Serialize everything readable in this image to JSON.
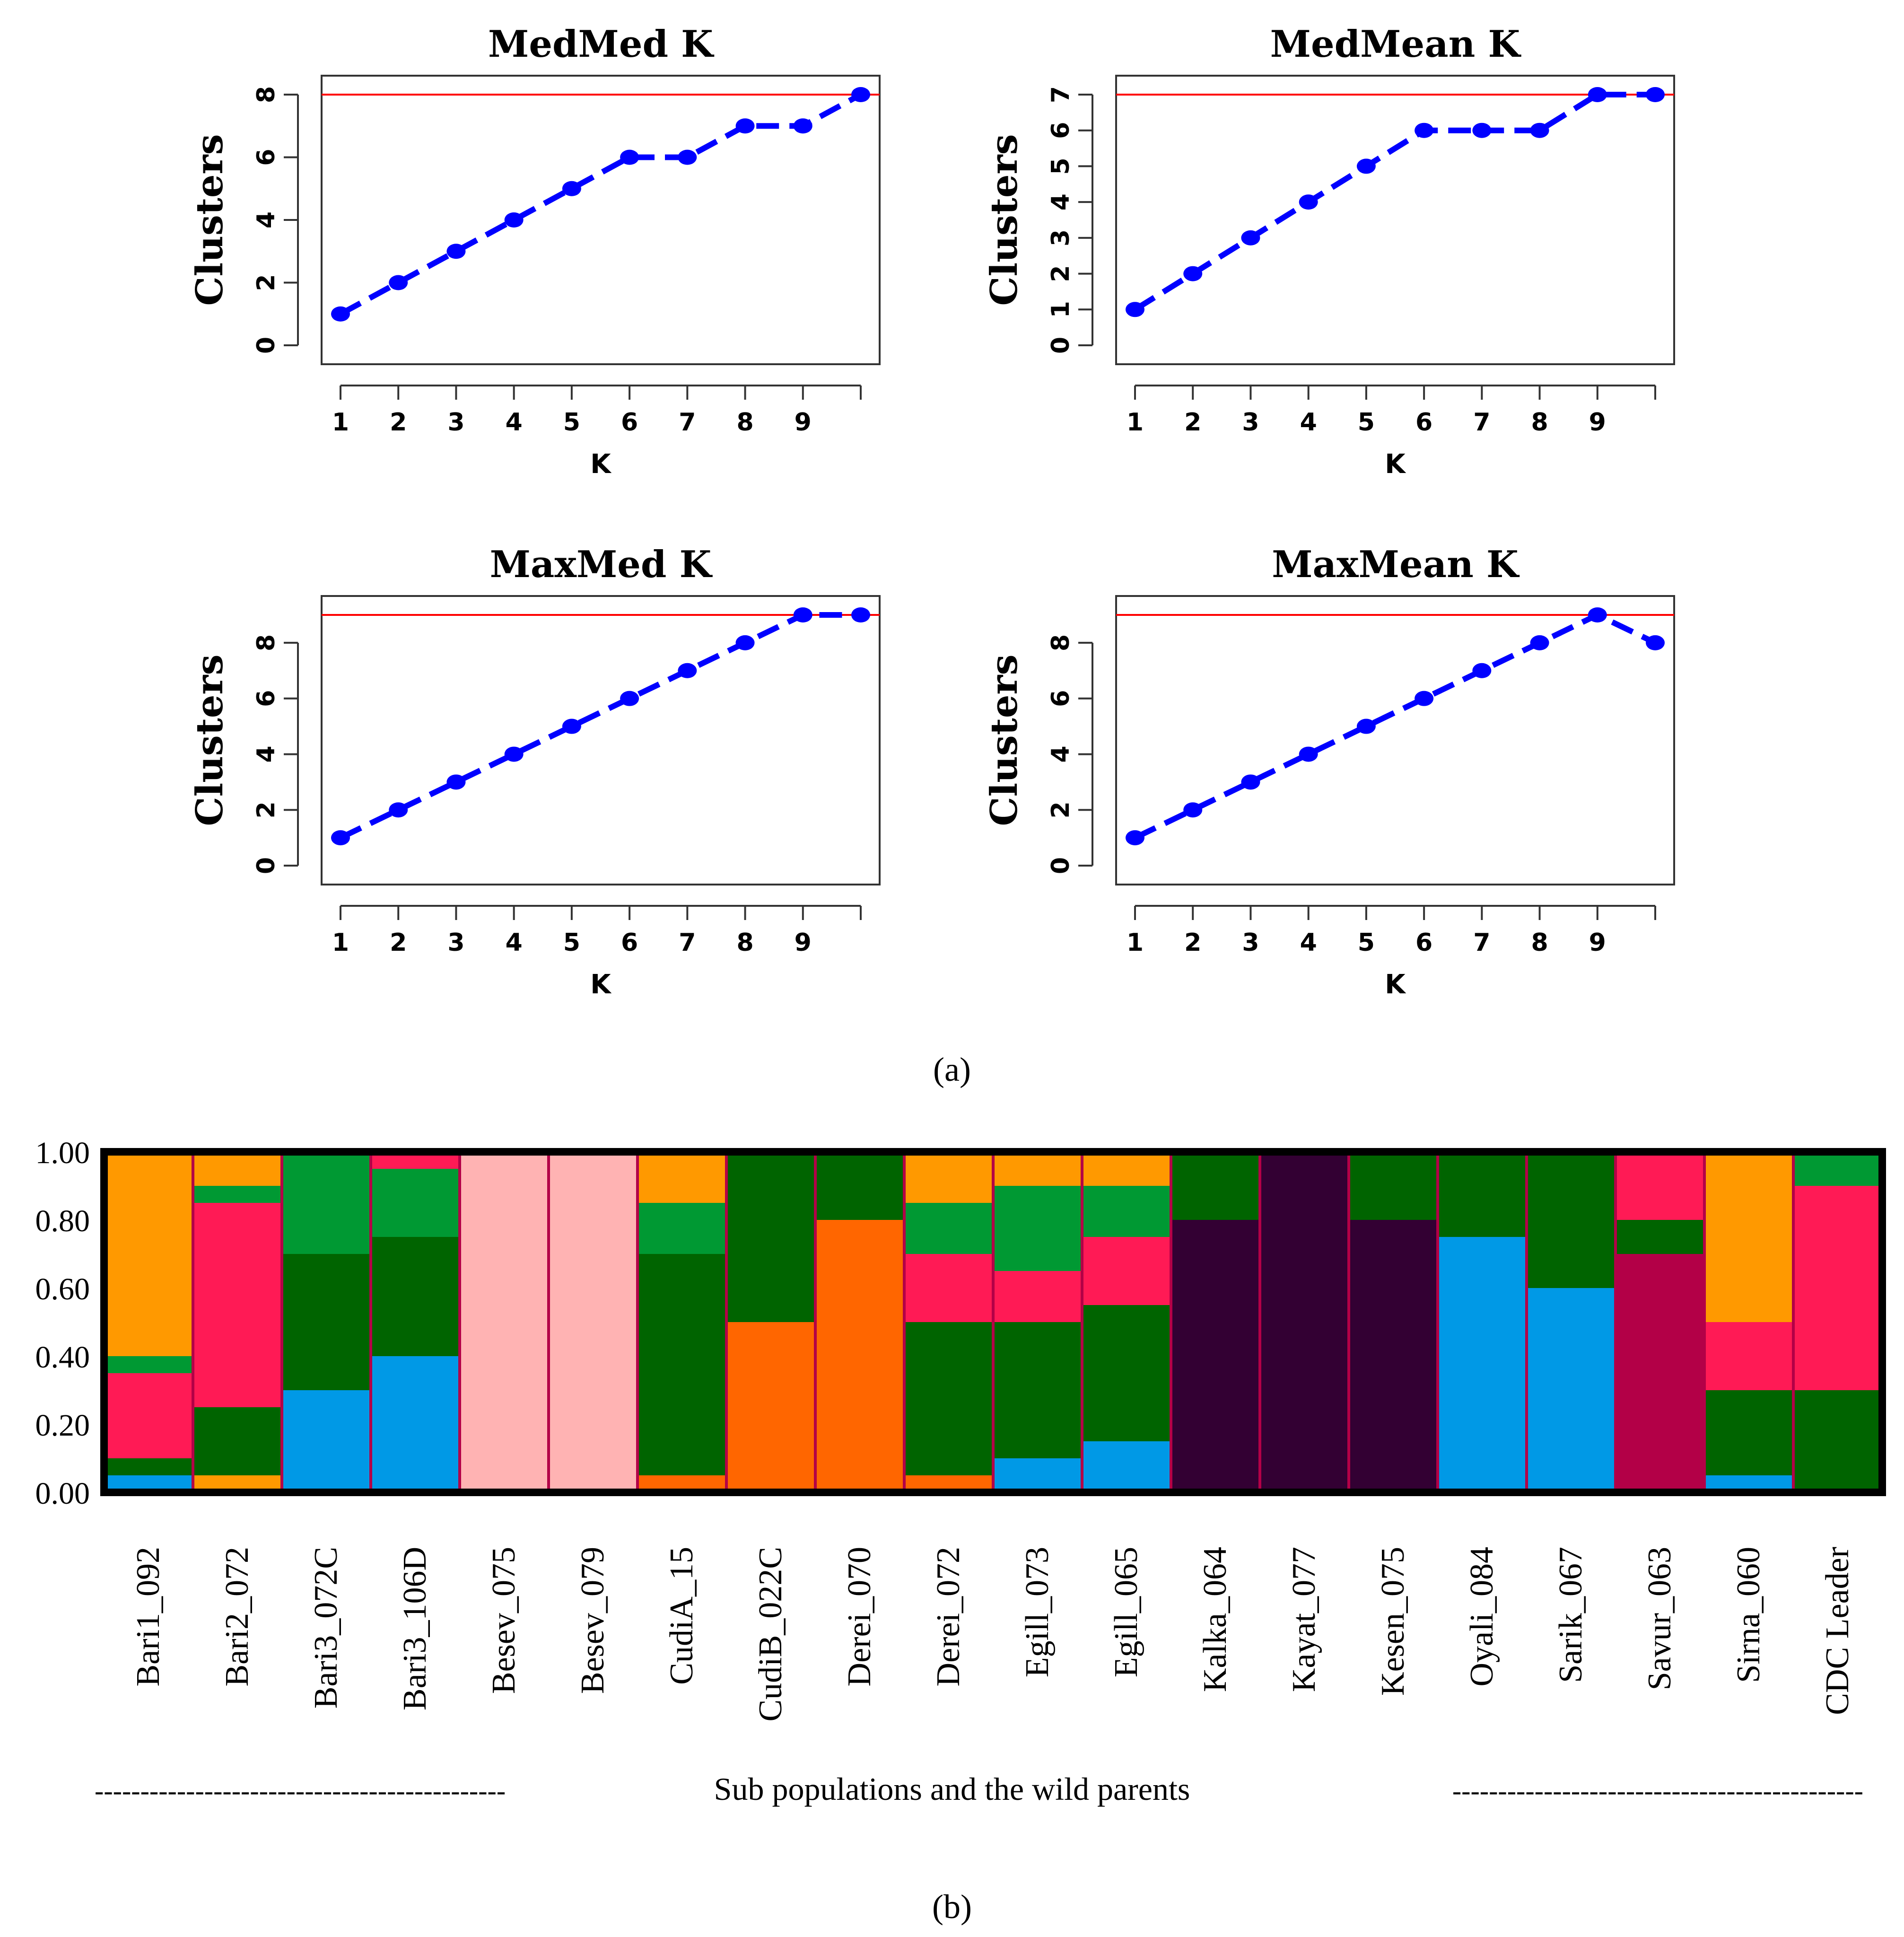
{
  "figure": {
    "panel_a_label": "(a)",
    "panel_b_label": "(b)",
    "footer_dashes_left": "---------------------------------------------",
    "footer_text": "Sub populations and the wild parents",
    "footer_dashes_right": "---------------------------------------------"
  },
  "colors": {
    "series": "#0000ff",
    "reference_line": "#ff0000",
    "frame": "#333333"
  },
  "chart_data": [
    {
      "type": "line",
      "title": "MedMed K",
      "xlabel": "K",
      "ylabel": "Clusters",
      "x": [
        1,
        2,
        3,
        4,
        5,
        6,
        7,
        8,
        9,
        10
      ],
      "y": [
        1,
        2,
        3,
        4,
        5,
        6,
        6,
        7,
        7,
        8
      ],
      "x_ticks": [
        1,
        2,
        3,
        4,
        5,
        6,
        7,
        8,
        9,
        10
      ],
      "x_tick_labels": [
        "1",
        "2",
        "3",
        "4",
        "5",
        "6",
        "7",
        "8",
        "9",
        ""
      ],
      "y_ticks": [
        0,
        2,
        4,
        6,
        8
      ],
      "xlim": [
        1,
        10
      ],
      "ylim": [
        0,
        8
      ],
      "reference_line_y": 8,
      "line_style": "dashed",
      "marker": "circle"
    },
    {
      "type": "line",
      "title": "MedMean K",
      "xlabel": "K",
      "ylabel": "Clusters",
      "x": [
        1,
        2,
        3,
        4,
        5,
        6,
        7,
        8,
        9,
        10
      ],
      "y": [
        1,
        2,
        3,
        4,
        5,
        6,
        6,
        6,
        7,
        7
      ],
      "x_ticks": [
        1,
        2,
        3,
        4,
        5,
        6,
        7,
        8,
        9,
        10
      ],
      "x_tick_labels": [
        "1",
        "2",
        "3",
        "4",
        "5",
        "6",
        "7",
        "8",
        "9",
        ""
      ],
      "y_ticks": [
        0,
        1,
        2,
        3,
        4,
        5,
        6,
        7
      ],
      "xlim": [
        1,
        10
      ],
      "ylim": [
        0,
        7
      ],
      "reference_line_y": 7,
      "line_style": "dashed",
      "marker": "circle"
    },
    {
      "type": "line",
      "title": "MaxMed K",
      "xlabel": "K",
      "ylabel": "Clusters",
      "x": [
        1,
        2,
        3,
        4,
        5,
        6,
        7,
        8,
        9,
        10
      ],
      "y": [
        1,
        2,
        3,
        4,
        5,
        6,
        7,
        8,
        9,
        9
      ],
      "x_ticks": [
        1,
        2,
        3,
        4,
        5,
        6,
        7,
        8,
        9,
        10
      ],
      "x_tick_labels": [
        "1",
        "2",
        "3",
        "4",
        "5",
        "6",
        "7",
        "8",
        "9",
        ""
      ],
      "y_ticks": [
        0,
        2,
        4,
        6,
        8
      ],
      "xlim": [
        1,
        10
      ],
      "ylim": [
        0,
        9
      ],
      "reference_line_y": 9,
      "line_style": "dashed",
      "marker": "circle"
    },
    {
      "type": "line",
      "title": "MaxMean K",
      "xlabel": "K",
      "ylabel": "Clusters",
      "x": [
        1,
        2,
        3,
        4,
        5,
        6,
        7,
        8,
        9,
        10
      ],
      "y": [
        1,
        2,
        3,
        4,
        5,
        6,
        7,
        8,
        9,
        8
      ],
      "x_ticks": [
        1,
        2,
        3,
        4,
        5,
        6,
        7,
        8,
        9,
        10
      ],
      "x_tick_labels": [
        "1",
        "2",
        "3",
        "4",
        "5",
        "6",
        "7",
        "8",
        "9",
        ""
      ],
      "y_ticks": [
        0,
        2,
        4,
        6,
        8
      ],
      "xlim": [
        1,
        10
      ],
      "ylim": [
        0,
        9
      ],
      "reference_line_y": 9,
      "line_style": "dashed",
      "marker": "circle"
    },
    {
      "type": "bar",
      "stacked": true,
      "y_ticks": [
        "0.00",
        "0.20",
        "0.40",
        "0.60",
        "0.80",
        "1.00"
      ],
      "ylim": [
        0,
        1
      ],
      "categories": [
        "Bari1_092",
        "Bari2_072",
        "Bari3_072C",
        "Bari3_106D",
        "Besev_075",
        "Besev_079",
        "CudiA_15",
        "CudiB_022C",
        "Derei_070",
        "Derei_072",
        "Egill_073",
        "Egill_065",
        "Kalka_064",
        "Kayat_077",
        "Kesen_075",
        "Oyali_084",
        "Sarik_067",
        "Savur_063",
        "Sirna_060",
        "CDC Leader"
      ],
      "component_colors": {
        "sky_blue": "#0099e6",
        "dark_green": "#006400",
        "green": "#009933",
        "orange": "#ff9900",
        "crimson": "#ff1a55",
        "light_pink": "#ffb3b3",
        "dark_orange": "#ff6600",
        "dark_purple": "#330033",
        "maroon": "#b30047"
      },
      "groups": [
        {
          "label": "Bari1_092",
          "components": [
            {
              "color": "sky_blue",
              "value": 0.05
            },
            {
              "color": "dark_green",
              "value": 0.05
            },
            {
              "color": "crimson",
              "value": 0.25
            },
            {
              "color": "green",
              "value": 0.05
            },
            {
              "color": "orange",
              "value": 0.6
            }
          ]
        },
        {
          "label": "Bari2_072",
          "components": [
            {
              "color": "orange",
              "value": 0.05
            },
            {
              "color": "dark_green",
              "value": 0.2
            },
            {
              "color": "crimson",
              "value": 0.6
            },
            {
              "color": "green",
              "value": 0.05
            },
            {
              "color": "orange",
              "value": 0.1
            }
          ]
        },
        {
          "label": "Bari3_072C",
          "components": [
            {
              "color": "sky_blue",
              "value": 0.3
            },
            {
              "color": "dark_green",
              "value": 0.4
            },
            {
              "color": "green",
              "value": 0.3
            }
          ]
        },
        {
          "label": "Bari3_106D",
          "components": [
            {
              "color": "sky_blue",
              "value": 0.4
            },
            {
              "color": "dark_green",
              "value": 0.35
            },
            {
              "color": "green",
              "value": 0.2
            },
            {
              "color": "crimson",
              "value": 0.05
            }
          ]
        },
        {
          "label": "Besev_075",
          "components": [
            {
              "color": "light_pink",
              "value": 1.0
            }
          ]
        },
        {
          "label": "Besev_079",
          "components": [
            {
              "color": "light_pink",
              "value": 1.0
            }
          ]
        },
        {
          "label": "CudiA_15",
          "components": [
            {
              "color": "dark_orange",
              "value": 0.05
            },
            {
              "color": "dark_green",
              "value": 0.65
            },
            {
              "color": "green",
              "value": 0.15
            },
            {
              "color": "orange",
              "value": 0.15
            }
          ]
        },
        {
          "label": "CudiB_022C",
          "components": [
            {
              "color": "dark_orange",
              "value": 0.5
            },
            {
              "color": "dark_green",
              "value": 0.5
            }
          ]
        },
        {
          "label": "Derei_070",
          "components": [
            {
              "color": "dark_orange",
              "value": 0.8
            },
            {
              "color": "dark_green",
              "value": 0.2
            }
          ]
        },
        {
          "label": "Derei_072",
          "components": [
            {
              "color": "dark_orange",
              "value": 0.05
            },
            {
              "color": "dark_green",
              "value": 0.45
            },
            {
              "color": "crimson",
              "value": 0.2
            },
            {
              "color": "green",
              "value": 0.15
            },
            {
              "color": "orange",
              "value": 0.15
            }
          ]
        },
        {
          "label": "Egill_073",
          "components": [
            {
              "color": "sky_blue",
              "value": 0.1
            },
            {
              "color": "dark_green",
              "value": 0.4
            },
            {
              "color": "crimson",
              "value": 0.15
            },
            {
              "color": "green",
              "value": 0.25
            },
            {
              "color": "orange",
              "value": 0.1
            }
          ]
        },
        {
          "label": "Egill_065",
          "components": [
            {
              "color": "sky_blue",
              "value": 0.15
            },
            {
              "color": "dark_green",
              "value": 0.4
            },
            {
              "color": "crimson",
              "value": 0.2
            },
            {
              "color": "green",
              "value": 0.15
            },
            {
              "color": "orange",
              "value": 0.1
            }
          ]
        },
        {
          "label": "Kalka_064",
          "components": [
            {
              "color": "dark_purple",
              "value": 0.8
            },
            {
              "color": "dark_green",
              "value": 0.2
            }
          ]
        },
        {
          "label": "Kayat_077",
          "components": [
            {
              "color": "dark_purple",
              "value": 1.0
            }
          ]
        },
        {
          "label": "Kesen_075",
          "components": [
            {
              "color": "dark_purple",
              "value": 0.8
            },
            {
              "color": "dark_green",
              "value": 0.2
            }
          ]
        },
        {
          "label": "Oyali_084",
          "components": [
            {
              "color": "sky_blue",
              "value": 0.75
            },
            {
              "color": "dark_green",
              "value": 0.25
            }
          ]
        },
        {
          "label": "Sarik_067",
          "components": [
            {
              "color": "sky_blue",
              "value": 0.6
            },
            {
              "color": "dark_green",
              "value": 0.4
            }
          ]
        },
        {
          "label": "Savur_063",
          "components": [
            {
              "color": "maroon",
              "value": 0.7
            },
            {
              "color": "dark_green",
              "value": 0.1
            },
            {
              "color": "crimson",
              "value": 0.2
            }
          ]
        },
        {
          "label": "Sirna_060",
          "components": [
            {
              "color": "sky_blue",
              "value": 0.05
            },
            {
              "color": "dark_green",
              "value": 0.25
            },
            {
              "color": "crimson",
              "value": 0.2
            },
            {
              "color": "orange",
              "value": 0.5
            }
          ]
        },
        {
          "label": "CDC Leader",
          "components": [
            {
              "color": "dark_green",
              "value": 0.3
            },
            {
              "color": "crimson",
              "value": 0.6
            },
            {
              "color": "green",
              "value": 0.1
            }
          ]
        }
      ]
    }
  ]
}
